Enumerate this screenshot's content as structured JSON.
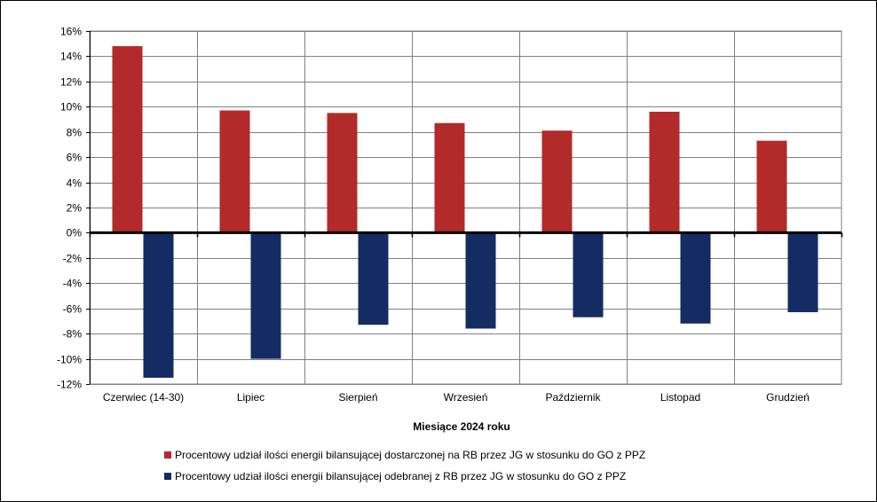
{
  "chart_data": {
    "type": "bar",
    "categories": [
      "Czerwiec (14-30)",
      "Lipiec",
      "Sierpień",
      "Wrzesień",
      "Październik",
      "Listopad",
      "Grudzień"
    ],
    "series": [
      {
        "name": "Procentowy udział ilości energii bilansującej dostarczonej na RB przez JG w stosunku do GO z PPZ",
        "color": "#B22A2A",
        "values": [
          14.8,
          9.7,
          9.5,
          8.7,
          8.1,
          9.6,
          7.3
        ]
      },
      {
        "name": "Procentowy udział ilości energii bilansującej odebranej z RB przez JG w stosunku do GO z PPZ",
        "color": "#142C63",
        "values": [
          -11.5,
          -10.0,
          -7.3,
          -7.6,
          -6.7,
          -7.2,
          -6.3
        ]
      }
    ],
    "ylim": [
      -12,
      16
    ],
    "yticks": [
      "-12%",
      "-10%",
      "-8%",
      "-6%",
      "-4%",
      "-2%",
      "0%",
      "2%",
      "4%",
      "6%",
      "8%",
      "10%",
      "12%",
      "14%",
      "16%"
    ],
    "xlabel": "Miesiące 2024  roku",
    "ylabel": "",
    "grid": true,
    "legend": "bottom"
  }
}
